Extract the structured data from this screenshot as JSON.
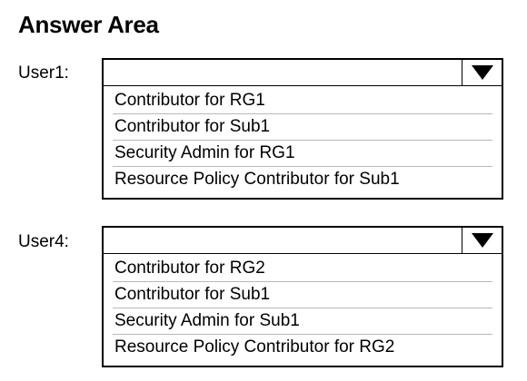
{
  "title": "Answer Area",
  "questions": [
    {
      "label": "User1:",
      "selected": "",
      "options": [
        "Contributor for RG1",
        "Contributor for Sub1",
        "Security Admin for RG1",
        "Resource Policy Contributor for Sub1"
      ]
    },
    {
      "label": "User4:",
      "selected": "",
      "options": [
        "Contributor for RG2",
        "Contributor for Sub1",
        "Security Admin for Sub1",
        "Resource Policy Contributor for RG2"
      ]
    }
  ],
  "icons": {
    "dropdown": "chevron-down-icon"
  },
  "colors": {
    "border": "#000000",
    "divider": "#b8b8b8",
    "background": "#ffffff"
  }
}
